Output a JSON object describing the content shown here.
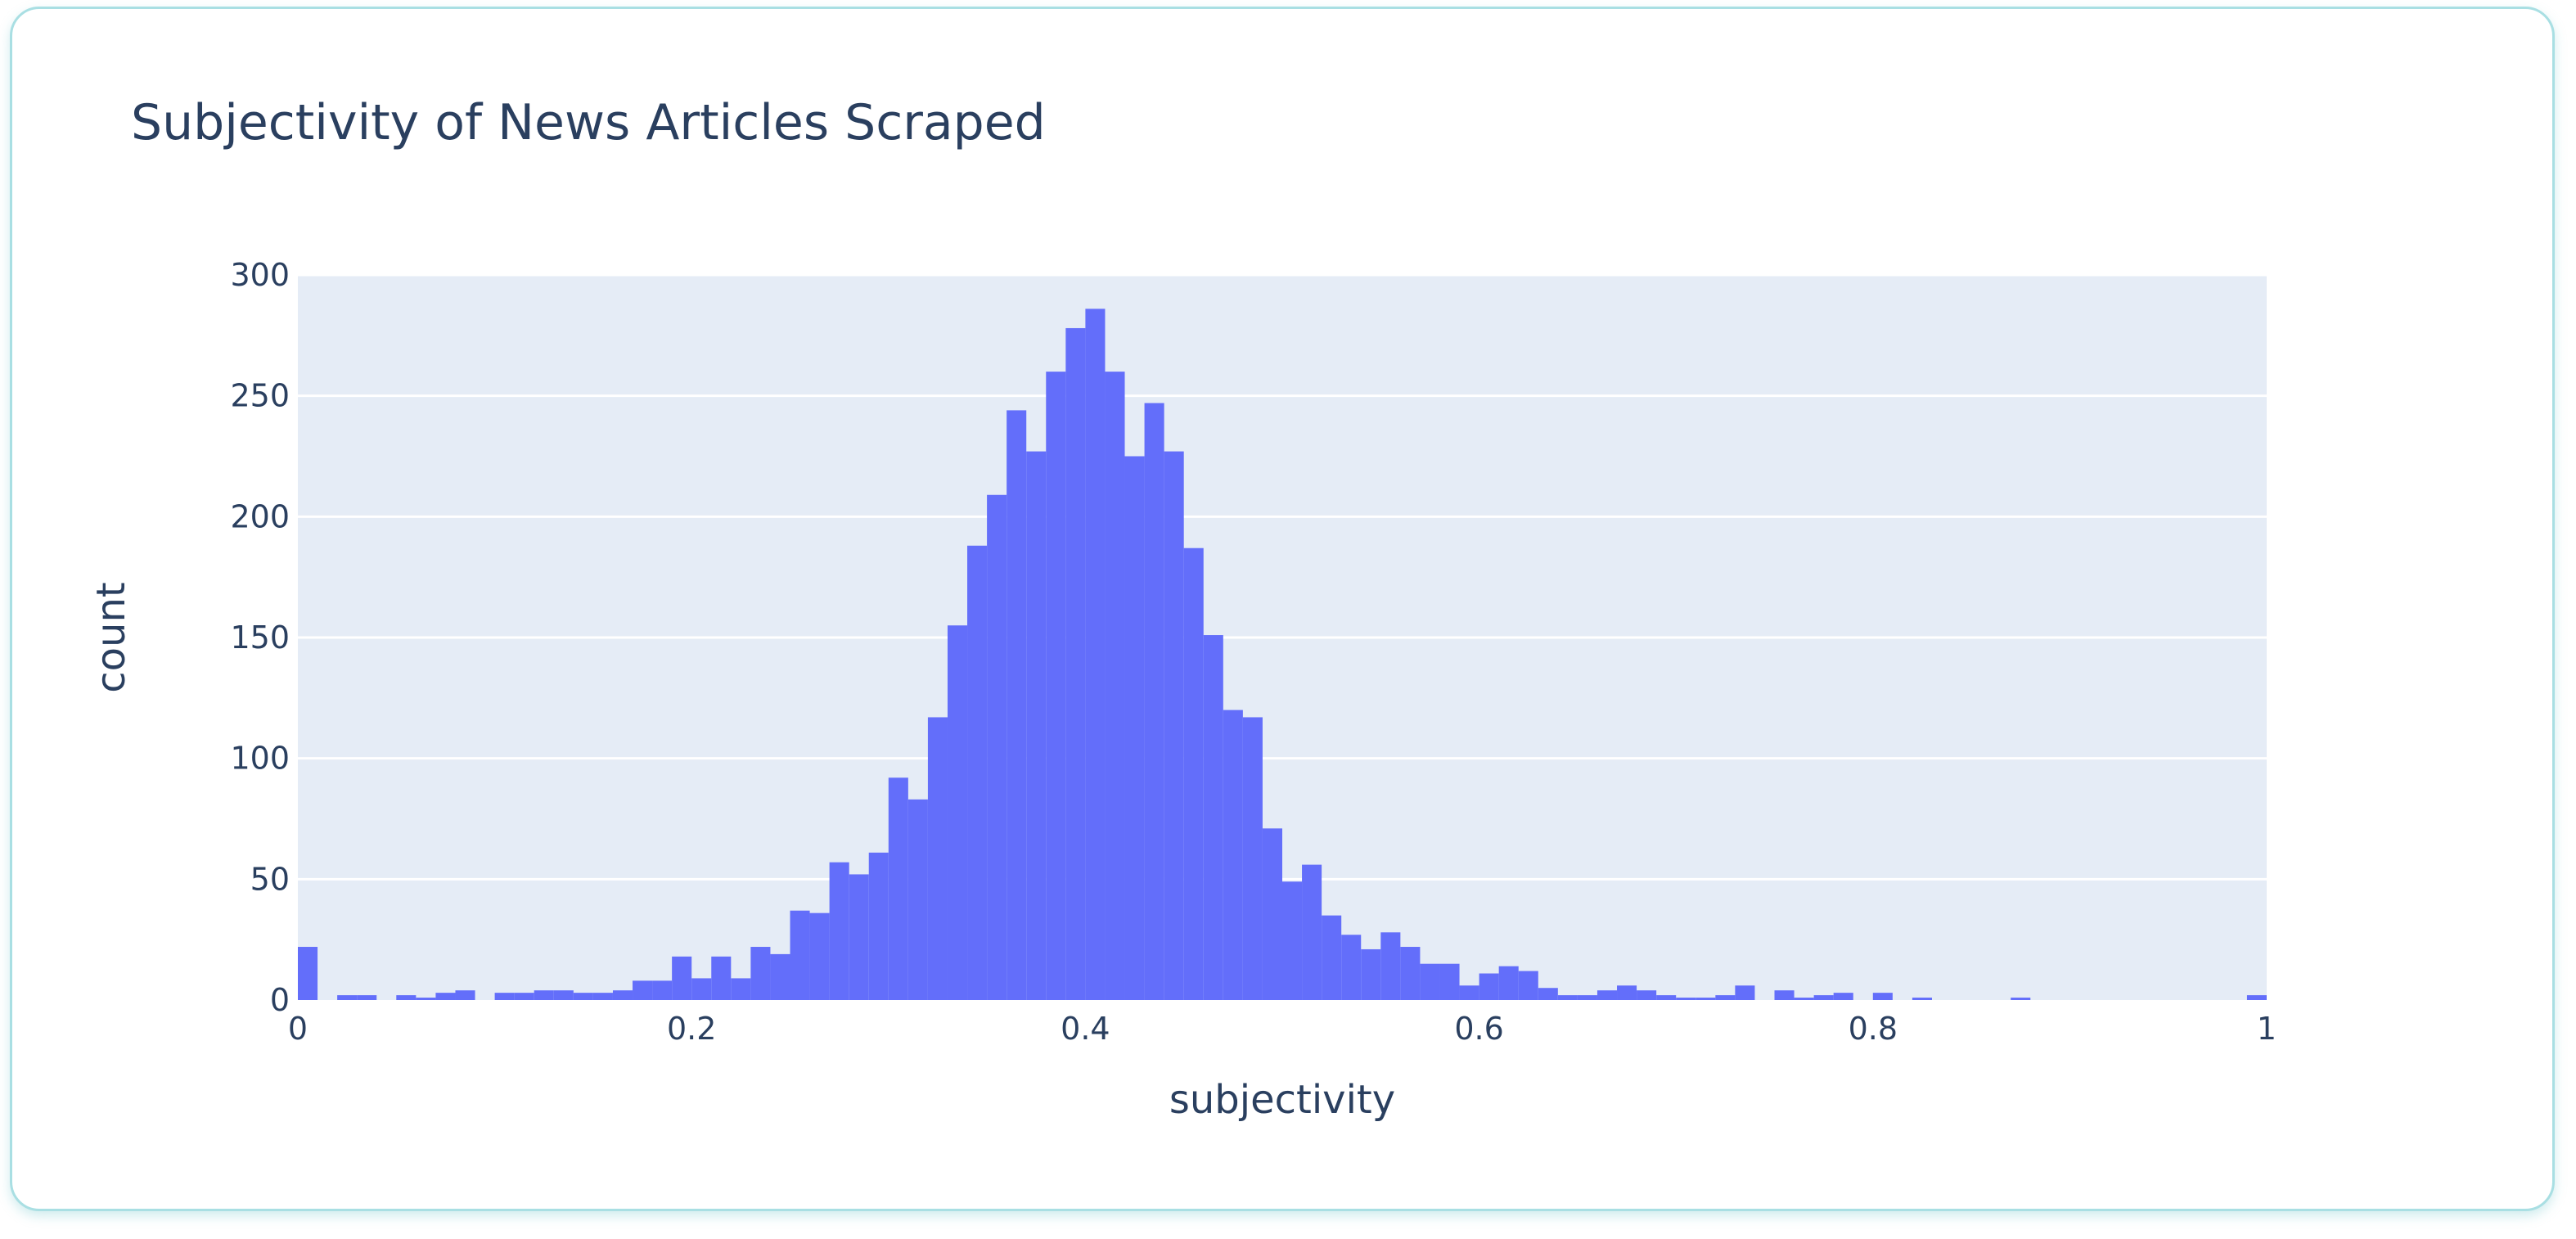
{
  "chart_data": {
    "type": "bar",
    "subtype": "histogram",
    "title": "Subjectivity of News Articles Scraped",
    "xlabel": "subjectivity",
    "ylabel": "count",
    "xlim": [
      0,
      1
    ],
    "ylim": [
      0,
      300
    ],
    "x_ticks": [
      0,
      0.2,
      0.4,
      0.6,
      0.8,
      1
    ],
    "x_tick_labels": [
      "0",
      "0.2",
      "0.4",
      "0.6",
      "0.8",
      "1"
    ],
    "y_ticks": [
      0,
      50,
      100,
      150,
      200,
      250,
      300
    ],
    "y_tick_labels": [
      "0",
      "50",
      "100",
      "150",
      "200",
      "250",
      "300"
    ],
    "grid": true,
    "bin_width": 0.01,
    "bin_starts": [
      0,
      0.01,
      0.02,
      0.03,
      0.04,
      0.05,
      0.06,
      0.07,
      0.08,
      0.09,
      0.1,
      0.11,
      0.12,
      0.13,
      0.14,
      0.15,
      0.16,
      0.17,
      0.18,
      0.19,
      0.2,
      0.21,
      0.22,
      0.23,
      0.24,
      0.25,
      0.26,
      0.27,
      0.28,
      0.29,
      0.3,
      0.31,
      0.32,
      0.33,
      0.34,
      0.35,
      0.36,
      0.37,
      0.38,
      0.39,
      0.4,
      0.41,
      0.42,
      0.43,
      0.44,
      0.45,
      0.46,
      0.47,
      0.48,
      0.49,
      0.5,
      0.51,
      0.52,
      0.53,
      0.54,
      0.55,
      0.56,
      0.57,
      0.58,
      0.59,
      0.6,
      0.61,
      0.62,
      0.63,
      0.64,
      0.65,
      0.66,
      0.67,
      0.68,
      0.69,
      0.7,
      0.71,
      0.72,
      0.73,
      0.74,
      0.75,
      0.76,
      0.77,
      0.78,
      0.79,
      0.8,
      0.81,
      0.82,
      0.83,
      0.84,
      0.85,
      0.86,
      0.87,
      0.88,
      0.89,
      0.9,
      0.91,
      0.92,
      0.93,
      0.94,
      0.95,
      0.96,
      0.97,
      0.98,
      0.99
    ],
    "values": [
      22,
      0,
      2,
      2,
      0,
      2,
      1,
      3,
      4,
      0,
      3,
      3,
      4,
      4,
      3,
      3,
      4,
      8,
      8,
      18,
      9,
      18,
      9,
      22,
      19,
      37,
      36,
      57,
      52,
      61,
      92,
      83,
      117,
      155,
      188,
      209,
      244,
      227,
      260,
      278,
      286,
      260,
      225,
      247,
      227,
      187,
      151,
      120,
      117,
      71,
      49,
      56,
      35,
      27,
      21,
      28,
      22,
      15,
      15,
      6,
      11,
      14,
      12,
      5,
      2,
      2,
      4,
      6,
      4,
      2,
      1,
      1,
      2,
      6,
      0,
      4,
      1,
      2,
      3,
      0,
      3,
      0,
      1,
      0,
      0,
      0,
      0,
      1,
      0,
      0,
      0,
      0,
      0,
      0,
      0,
      0,
      0,
      0,
      0,
      2
    ],
    "colors": {
      "bar": "#636efa",
      "plot_bg": "#e5ecf6",
      "grid": "#ffffff",
      "text": "#2a3f5f",
      "card_border": "#a9dfe3"
    }
  }
}
